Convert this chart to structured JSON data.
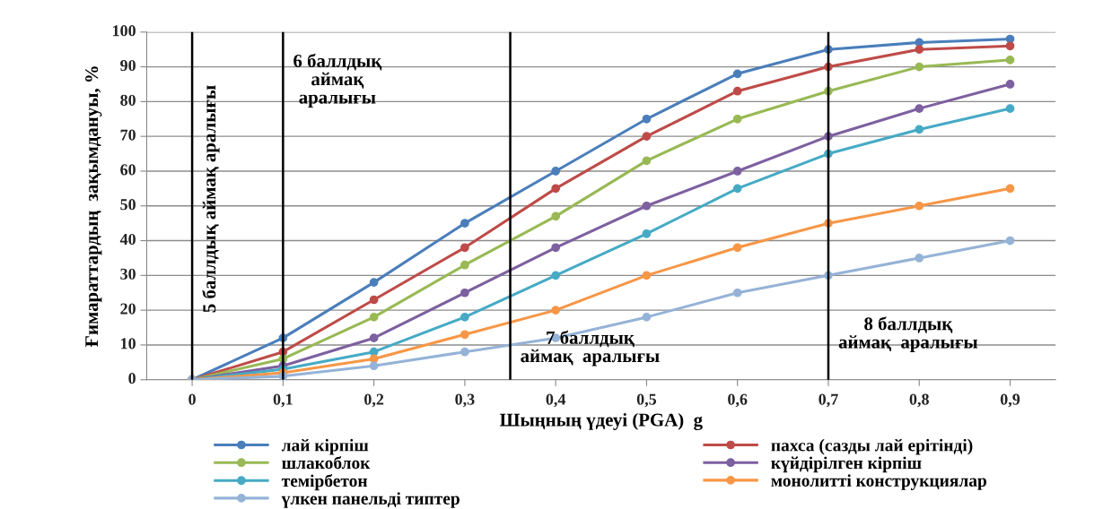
{
  "chart_data": {
    "type": "line",
    "xlabel": "Шыңның үдеуі (PGA)  g",
    "ylabel": "Ғимараттардың  зақымдануы, %",
    "x": [
      0,
      0.1,
      0.2,
      0.3,
      0.4,
      0.5,
      0.6,
      0.7,
      0.8,
      0.9
    ],
    "xlim": [
      -0.05,
      0.95
    ],
    "xticks": [
      0,
      {
        "value": 0.1,
        "label": "0,1"
      },
      {
        "value": 0.2,
        "label": "0,2"
      },
      {
        "value": 0.3,
        "label": "0,3"
      },
      {
        "value": 0.4,
        "label": "0,4"
      },
      {
        "value": 0.5,
        "label": "0,5"
      },
      {
        "value": 0.6,
        "label": "0,6"
      },
      {
        "value": 0.7,
        "label": "0,7"
      },
      {
        "value": 0.8,
        "label": "0,8"
      },
      {
        "value": 0.9,
        "label": "0,9"
      }
    ],
    "ylim": [
      0,
      100
    ],
    "yticks": [
      0,
      10,
      20,
      30,
      40,
      50,
      60,
      70,
      80,
      90,
      100
    ],
    "grid": "y",
    "marker": "circle",
    "line_style": "solid",
    "legend": "bottom",
    "series": [
      {
        "name": "лай кірпіш",
        "color": "#4a7ebb",
        "values": [
          0,
          12,
          28,
          45,
          60,
          75,
          88,
          95,
          97,
          98
        ]
      },
      {
        "name": "пахса (сазды лай ерітінді)",
        "color": "#be4b48",
        "values": [
          0,
          8,
          23,
          38,
          55,
          70,
          83,
          90,
          95,
          96
        ]
      },
      {
        "name": "шлакоблок",
        "color": "#98b954",
        "values": [
          0,
          6,
          18,
          33,
          47,
          63,
          75,
          83,
          90,
          92
        ]
      },
      {
        "name": "күйдірілген кірпіш",
        "color": "#7d60a0",
        "values": [
          0,
          4,
          12,
          25,
          38,
          50,
          60,
          70,
          78,
          85
        ]
      },
      {
        "name": "темірбетон",
        "color": "#46aac5",
        "values": [
          0,
          3,
          8,
          18,
          30,
          42,
          55,
          65,
          72,
          78
        ]
      },
      {
        "name": "монолитті конструкциялар",
        "color": "#f79646",
        "values": [
          0,
          2,
          6,
          13,
          20,
          30,
          38,
          45,
          50,
          55
        ]
      },
      {
        "name": "үлкен панельді типтер",
        "color": "#95b3d7",
        "values": [
          0,
          1,
          4,
          8,
          12,
          18,
          25,
          30,
          35,
          40
        ]
      }
    ],
    "ref_lines": [
      {
        "axis": "x",
        "value": 0,
        "label": "5 баллдық аймақ аралығы",
        "color": "#000000"
      },
      {
        "axis": "x",
        "value": 0.1,
        "label": "6 баллдық\nаймақ\nаралығы",
        "color": "#000000"
      },
      {
        "axis": "x",
        "value": 0.35,
        "label": "7 баллдық\nаймақ  аралығы",
        "color": "#000000"
      },
      {
        "axis": "x",
        "value": 0.7,
        "label": "8 баллдық\nаймақ  аралығы",
        "color": "#000000"
      }
    ]
  }
}
